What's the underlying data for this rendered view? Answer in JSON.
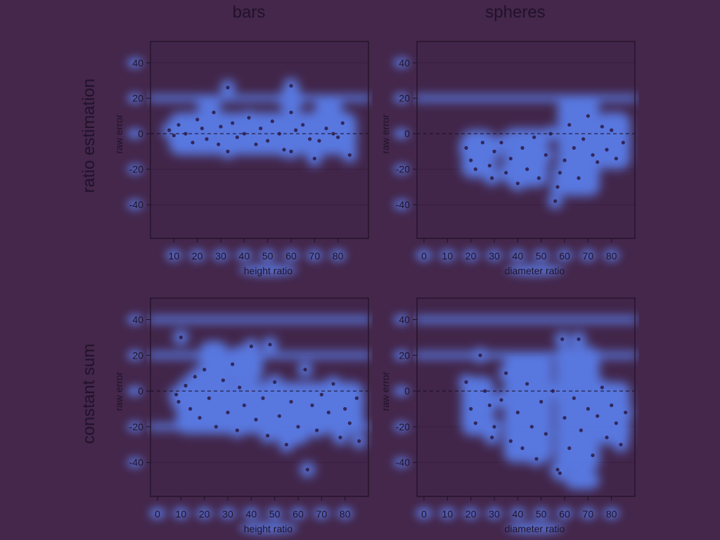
{
  "colors": {
    "background": "#44274b",
    "panel_fill": "#42264a",
    "frame": "#1f1026",
    "text": "#21122a",
    "point": "#2a1a45",
    "blob": "#5b83f4",
    "gridline": "#3a1f40",
    "zero_line": "#1a0d20"
  },
  "figure": {
    "column_titles": [
      "bars",
      "spheres"
    ],
    "row_titles": [
      "ratio estimation",
      "constant sum"
    ]
  },
  "chart_data": [
    {
      "type": "scatter",
      "row_title": "ratio estimation",
      "column_title": "bars",
      "xlabel": "height ratio",
      "ylabel": "raw error",
      "xticks": [
        10,
        20,
        30,
        40,
        50,
        60,
        70,
        80
      ],
      "yticks": [
        40,
        20,
        0,
        -20,
        -40
      ],
      "xlim": [
        0,
        93
      ],
      "ylim": [
        -59,
        52
      ],
      "zero_line": true,
      "heat_bands": [
        20
      ],
      "density_regions": [
        {
          "x": [
            8,
            88
          ],
          "y": [
            -12,
            12
          ]
        },
        {
          "x": [
            20,
            30
          ],
          "y": [
            10,
            22
          ]
        },
        {
          "x": [
            55,
            65
          ],
          "y": [
            12,
            26
          ]
        },
        {
          "x": [
            70,
            82
          ],
          "y": [
            5,
            20
          ]
        }
      ],
      "points": [
        [
          8,
          2
        ],
        [
          10,
          -1
        ],
        [
          12,
          5
        ],
        [
          15,
          0
        ],
        [
          18,
          -5
        ],
        [
          20,
          8
        ],
        [
          22,
          3
        ],
        [
          24,
          -3
        ],
        [
          27,
          12
        ],
        [
          29,
          -6
        ],
        [
          30,
          4
        ],
        [
          33,
          -10
        ],
        [
          35,
          6
        ],
        [
          37,
          -2
        ],
        [
          40,
          0
        ],
        [
          42,
          9
        ],
        [
          45,
          -6
        ],
        [
          47,
          3
        ],
        [
          50,
          -4
        ],
        [
          52,
          7
        ],
        [
          55,
          0
        ],
        [
          57,
          -9
        ],
        [
          60,
          12
        ],
        [
          60,
          -10
        ],
        [
          62,
          2
        ],
        [
          65,
          5
        ],
        [
          68,
          -3
        ],
        [
          70,
          -14
        ],
        [
          72,
          -4
        ],
        [
          75,
          3
        ],
        [
          78,
          0
        ],
        [
          80,
          -2
        ],
        [
          82,
          6
        ],
        [
          85,
          -12
        ],
        [
          33,
          26
        ],
        [
          60,
          27
        ]
      ]
    },
    {
      "type": "scatter",
      "row_title": "ratio estimation",
      "column_title": "spheres",
      "xlabel": "diameter ratio",
      "ylabel": "raw error",
      "xticks": [
        0,
        10,
        20,
        30,
        40,
        50,
        60,
        70,
        80
      ],
      "yticks": [
        40,
        20,
        0,
        -20,
        -40
      ],
      "xlim": [
        -3,
        90
      ],
      "ylim": [
        -59,
        52
      ],
      "zero_line": true,
      "heat_bands": [
        20
      ],
      "density_regions": [
        {
          "x": [
            16,
            30
          ],
          "y": [
            -25,
            2
          ]
        },
        {
          "x": [
            34,
            53
          ],
          "y": [
            -30,
            3
          ]
        },
        {
          "x": [
            57,
            75
          ],
          "y": [
            -35,
            20
          ]
        },
        {
          "x": [
            74,
            88
          ],
          "y": [
            -20,
            12
          ]
        }
      ],
      "points": [
        [
          18,
          -8
        ],
        [
          20,
          -15
        ],
        [
          22,
          -20
        ],
        [
          25,
          -5
        ],
        [
          28,
          -18
        ],
        [
          29,
          -25
        ],
        [
          30,
          -10
        ],
        [
          33,
          -5
        ],
        [
          35,
          -22
        ],
        [
          37,
          -14
        ],
        [
          40,
          -28
        ],
        [
          42,
          -8
        ],
        [
          44,
          -20
        ],
        [
          47,
          -2
        ],
        [
          49,
          -25
        ],
        [
          52,
          -12
        ],
        [
          54,
          0
        ],
        [
          57,
          -30
        ],
        [
          58,
          -22
        ],
        [
          60,
          -15
        ],
        [
          62,
          5
        ],
        [
          64,
          -8
        ],
        [
          66,
          -25
        ],
        [
          68,
          -3
        ],
        [
          70,
          10
        ],
        [
          72,
          -12
        ],
        [
          74,
          -16
        ],
        [
          76,
          4
        ],
        [
          78,
          -9
        ],
        [
          80,
          2
        ],
        [
          82,
          -14
        ],
        [
          85,
          -5
        ],
        [
          56,
          -38
        ]
      ]
    },
    {
      "type": "scatter",
      "row_title": "constant sum",
      "column_title": "bars",
      "xlabel": "height ratio",
      "ylabel": "raw error",
      "xticks": [
        0,
        10,
        20,
        30,
        40,
        50,
        60,
        70,
        80
      ],
      "yticks": [
        40,
        20,
        0,
        -20,
        -40
      ],
      "xlim": [
        -3,
        90
      ],
      "ylim": [
        -59,
        52
      ],
      "zero_line": true,
      "heat_bands": [
        40,
        20,
        -20
      ],
      "density_regions": [
        {
          "x": [
            8,
            88
          ],
          "y": [
            -24,
            5
          ]
        },
        {
          "x": [
            18,
            30
          ],
          "y": [
            0,
            28
          ]
        },
        {
          "x": [
            30,
            45
          ],
          "y": [
            5,
            25
          ]
        },
        {
          "x": [
            50,
            65
          ],
          "y": [
            -30,
            -10
          ]
        }
      ],
      "points": [
        [
          8,
          -2
        ],
        [
          9,
          -6
        ],
        [
          10,
          30
        ],
        [
          12,
          3
        ],
        [
          14,
          -10
        ],
        [
          16,
          8
        ],
        [
          18,
          -15
        ],
        [
          20,
          12
        ],
        [
          22,
          -4
        ],
        [
          25,
          -20
        ],
        [
          28,
          6
        ],
        [
          30,
          -12
        ],
        [
          32,
          15
        ],
        [
          34,
          -22
        ],
        [
          35,
          2
        ],
        [
          37,
          -8
        ],
        [
          40,
          25
        ],
        [
          42,
          -16
        ],
        [
          45,
          -4
        ],
        [
          47,
          -25
        ],
        [
          48,
          26
        ],
        [
          50,
          5
        ],
        [
          52,
          -14
        ],
        [
          55,
          -30
        ],
        [
          57,
          -6
        ],
        [
          60,
          -20
        ],
        [
          63,
          12
        ],
        [
          64,
          -44
        ],
        [
          66,
          -8
        ],
        [
          68,
          -22
        ],
        [
          70,
          -2
        ],
        [
          73,
          -12
        ],
        [
          75,
          4
        ],
        [
          78,
          -26
        ],
        [
          80,
          -10
        ],
        [
          82,
          -18
        ],
        [
          85,
          -4
        ],
        [
          86,
          -28
        ]
      ]
    },
    {
      "type": "scatter",
      "row_title": "constant sum",
      "column_title": "spheres",
      "xlabel": "diameter ratio",
      "ylabel": "raw error",
      "xticks": [
        0,
        10,
        20,
        30,
        40,
        50,
        60,
        70,
        80
      ],
      "yticks": [
        40,
        20,
        0,
        -20,
        -40
      ],
      "xlim": [
        -3,
        90
      ],
      "ylim": [
        -59,
        52
      ],
      "zero_line": true,
      "heat_bands": [
        40,
        20
      ],
      "density_regions": [
        {
          "x": [
            16,
            30
          ],
          "y": [
            -25,
            8
          ]
        },
        {
          "x": [
            34,
            55
          ],
          "y": [
            -40,
            20
          ]
        },
        {
          "x": [
            56,
            75
          ],
          "y": [
            -45,
            25
          ]
        },
        {
          "x": [
            74,
            88
          ],
          "y": [
            -30,
            5
          ]
        },
        {
          "x": [
            60,
            75
          ],
          "y": [
            -55,
            -45
          ]
        }
      ],
      "points": [
        [
          18,
          5
        ],
        [
          20,
          -10
        ],
        [
          22,
          -18
        ],
        [
          24,
          20
        ],
        [
          26,
          0
        ],
        [
          28,
          -8
        ],
        [
          29,
          -26
        ],
        [
          30,
          -20
        ],
        [
          33,
          -5
        ],
        [
          35,
          10
        ],
        [
          37,
          -28
        ],
        [
          40,
          -12
        ],
        [
          42,
          -32
        ],
        [
          44,
          4
        ],
        [
          46,
          -20
        ],
        [
          48,
          -38
        ],
        [
          50,
          -6
        ],
        [
          52,
          -24
        ],
        [
          55,
          0
        ],
        [
          57,
          -44
        ],
        [
          58,
          -46
        ],
        [
          59,
          29
        ],
        [
          60,
          -15
        ],
        [
          62,
          -32
        ],
        [
          64,
          -4
        ],
        [
          66,
          29
        ],
        [
          67,
          -22
        ],
        [
          70,
          -10
        ],
        [
          72,
          -36
        ],
        [
          74,
          -14
        ],
        [
          76,
          2
        ],
        [
          78,
          -26
        ],
        [
          80,
          -8
        ],
        [
          82,
          -18
        ],
        [
          84,
          -30
        ],
        [
          86,
          -12
        ]
      ]
    }
  ]
}
